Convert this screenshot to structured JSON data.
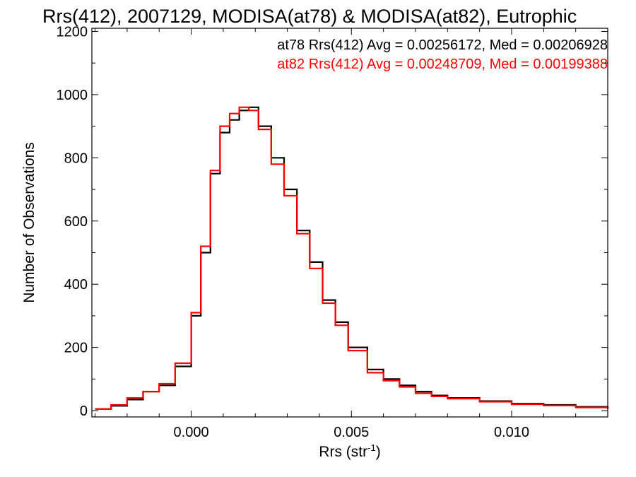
{
  "chart_data": {
    "type": "line",
    "title": "Rrs(412), 2007129, MODISA(at78) & MODISA(at82), Eutrophic",
    "xlabel_main": "Rrs (str",
    "xlabel_sup": "-1",
    "xlabel_end": ")",
    "ylabel": "Number of Observations",
    "xlim": [
      -0.0031,
      0.013
    ],
    "ylim": [
      -20,
      1210
    ],
    "x_ticks": [
      0.0,
      0.005,
      0.01
    ],
    "x_tick_labels": [
      "0.000",
      "0.005",
      "0.010"
    ],
    "y_ticks": [
      0,
      200,
      400,
      600,
      800,
      1000,
      1200
    ],
    "y_tick_labels": [
      "0",
      "200",
      "400",
      "600",
      "800",
      "1000",
      "1200"
    ],
    "grid": false,
    "legend": {
      "placement": "top-right",
      "entries": [
        "at78 Rrs(412) Avg = 0.00256172, Med = 0.00206928",
        "at82 Rrs(412) Avg = 0.00248709, Med = 0.00199388"
      ]
    },
    "series": [
      {
        "name": "at78",
        "color": "#000000",
        "points": [
          [
            -0.003,
            5
          ],
          [
            -0.0025,
            15
          ],
          [
            -0.002,
            35
          ],
          [
            -0.0015,
            60
          ],
          [
            -0.001,
            80
          ],
          [
            -0.0005,
            140
          ],
          [
            0.0,
            300
          ],
          [
            0.0003,
            500
          ],
          [
            0.0006,
            750
          ],
          [
            0.0009,
            880
          ],
          [
            0.0012,
            920
          ],
          [
            0.0015,
            950
          ],
          [
            0.0018,
            960
          ],
          [
            0.0021,
            900
          ],
          [
            0.0025,
            800
          ],
          [
            0.0029,
            700
          ],
          [
            0.0033,
            570
          ],
          [
            0.0037,
            470
          ],
          [
            0.0041,
            350
          ],
          [
            0.0045,
            280
          ],
          [
            0.0049,
            200
          ],
          [
            0.0055,
            130
          ],
          [
            0.006,
            100
          ],
          [
            0.0065,
            80
          ],
          [
            0.007,
            60
          ],
          [
            0.0075,
            48
          ],
          [
            0.008,
            40
          ],
          [
            0.009,
            30
          ],
          [
            0.01,
            22
          ],
          [
            0.011,
            18
          ],
          [
            0.012,
            12
          ],
          [
            0.013,
            6
          ]
        ]
      },
      {
        "name": "at82",
        "color": "#ff0000",
        "points": [
          [
            -0.003,
            5
          ],
          [
            -0.0025,
            18
          ],
          [
            -0.002,
            40
          ],
          [
            -0.0015,
            60
          ],
          [
            -0.001,
            85
          ],
          [
            -0.0005,
            150
          ],
          [
            0.0,
            310
          ],
          [
            0.0003,
            520
          ],
          [
            0.0006,
            760
          ],
          [
            0.0009,
            900
          ],
          [
            0.0012,
            940
          ],
          [
            0.0015,
            960
          ],
          [
            0.0018,
            950
          ],
          [
            0.0021,
            890
          ],
          [
            0.0025,
            780
          ],
          [
            0.0029,
            680
          ],
          [
            0.0033,
            560
          ],
          [
            0.0037,
            450
          ],
          [
            0.0041,
            340
          ],
          [
            0.0045,
            270
          ],
          [
            0.0049,
            190
          ],
          [
            0.0055,
            120
          ],
          [
            0.006,
            95
          ],
          [
            0.0065,
            75
          ],
          [
            0.007,
            55
          ],
          [
            0.0075,
            45
          ],
          [
            0.008,
            38
          ],
          [
            0.009,
            28
          ],
          [
            0.01,
            20
          ],
          [
            0.011,
            16
          ],
          [
            0.012,
            10
          ],
          [
            0.013,
            5
          ]
        ]
      }
    ]
  }
}
